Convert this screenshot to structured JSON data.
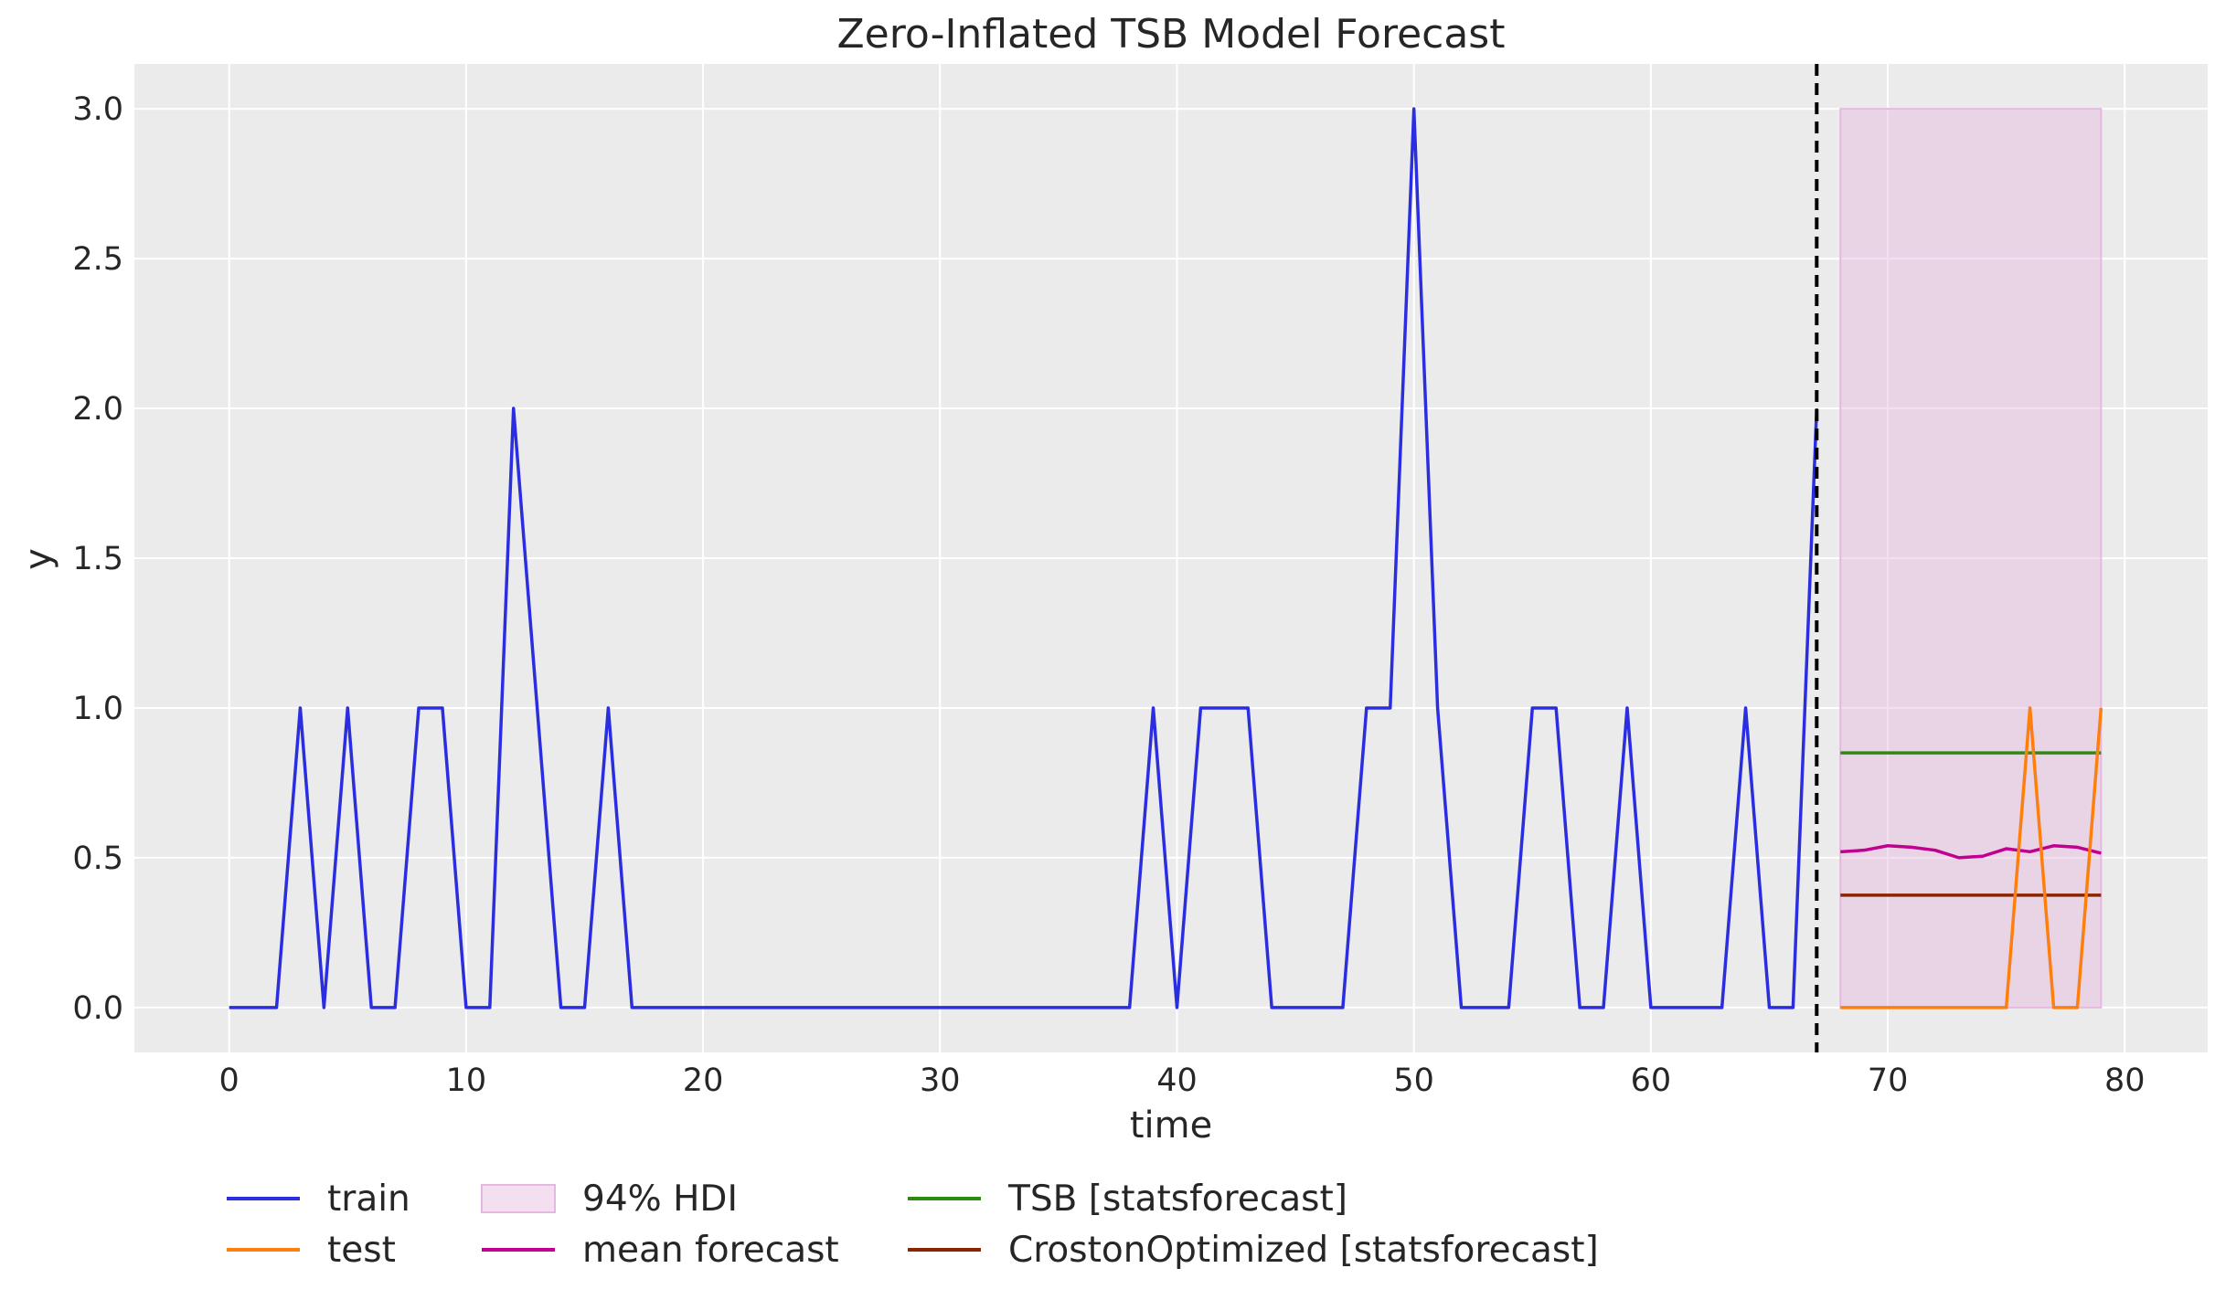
{
  "chart_data": {
    "type": "line",
    "title": "Zero-Inflated TSB Model Forecast",
    "xlabel": "time",
    "ylabel": "y",
    "xlim": [
      -4,
      83.5
    ],
    "ylim": [
      -0.15,
      3.15
    ],
    "xticks": [
      0,
      10,
      20,
      30,
      40,
      50,
      60,
      70,
      80
    ],
    "yticks": [
      0.0,
      0.5,
      1.0,
      1.5,
      2.0,
      2.5,
      3.0
    ],
    "ytick_labels": [
      "0.0",
      "0.5",
      "1.0",
      "1.5",
      "2.0",
      "2.5",
      "3.0"
    ],
    "grid": true,
    "background": "#ebebeb",
    "legend_position": "bottom",
    "cutoff_x": 67,
    "series": [
      {
        "name": "train",
        "color": "#2a2ee0",
        "x": [
          0,
          1,
          2,
          3,
          4,
          5,
          6,
          7,
          8,
          9,
          10,
          11,
          12,
          13,
          14,
          15,
          16,
          17,
          18,
          19,
          20,
          21,
          22,
          23,
          24,
          25,
          26,
          27,
          28,
          29,
          30,
          31,
          32,
          33,
          34,
          35,
          36,
          37,
          38,
          39,
          40,
          41,
          42,
          43,
          44,
          45,
          46,
          47,
          48,
          49,
          50,
          51,
          52,
          53,
          54,
          55,
          56,
          57,
          58,
          59,
          60,
          61,
          62,
          63,
          64,
          65,
          66,
          67
        ],
        "y": [
          0,
          0,
          0,
          1,
          0,
          1,
          0,
          0,
          1,
          1,
          0,
          0,
          2,
          1,
          0,
          0,
          1,
          0,
          0,
          0,
          0,
          0,
          0,
          0,
          0,
          0,
          0,
          0,
          0,
          0,
          0,
          0,
          0,
          0,
          0,
          0,
          0,
          0,
          0,
          1,
          0,
          1,
          1,
          1,
          0,
          0,
          0,
          0,
          1,
          1,
          3,
          1,
          0,
          0,
          0,
          1,
          1,
          0,
          0,
          1,
          0,
          0,
          0,
          0,
          1,
          0,
          0,
          2
        ]
      },
      {
        "name": "test",
        "color": "#ff7f0e",
        "x": [
          68,
          69,
          70,
          71,
          72,
          73,
          74,
          75,
          76,
          77,
          78,
          79
        ],
        "y": [
          0,
          0,
          0,
          0,
          0,
          0,
          0,
          0,
          1,
          0,
          0,
          1
        ]
      },
      {
        "name": "mean forecast",
        "color": "#c2008f",
        "x": [
          68,
          69,
          70,
          71,
          72,
          73,
          74,
          75,
          76,
          77,
          78,
          79
        ],
        "y": [
          0.52,
          0.525,
          0.54,
          0.535,
          0.525,
          0.5,
          0.505,
          0.53,
          0.52,
          0.54,
          0.535,
          0.515
        ]
      },
      {
        "name": "TSB [statsforecast]",
        "color": "#2e8b0e",
        "x": [
          68,
          79
        ],
        "y": [
          0.85,
          0.85
        ]
      },
      {
        "name": "CrostonOptimized [statsforecast]",
        "color": "#8b2500",
        "x": [
          68,
          79
        ],
        "y": [
          0.375,
          0.375
        ]
      }
    ],
    "hdi": {
      "name": "94% HDI",
      "color": "#e6b8e0",
      "x": [
        68,
        79
      ],
      "lower": [
        0,
        0
      ],
      "upper": [
        3,
        3
      ]
    },
    "legend": [
      {
        "label": "train",
        "kind": "line",
        "color": "#2a2ee0"
      },
      {
        "label": "test",
        "kind": "line",
        "color": "#ff7f0e"
      },
      {
        "label": "94% HDI",
        "kind": "patch",
        "color": "#e6b8e0"
      },
      {
        "label": "mean forecast",
        "kind": "line",
        "color": "#c2008f"
      },
      {
        "label": "TSB [statsforecast]",
        "kind": "line",
        "color": "#2e8b0e"
      },
      {
        "label": "CrostonOptimized [statsforecast]",
        "kind": "line",
        "color": "#8b2500"
      }
    ]
  }
}
